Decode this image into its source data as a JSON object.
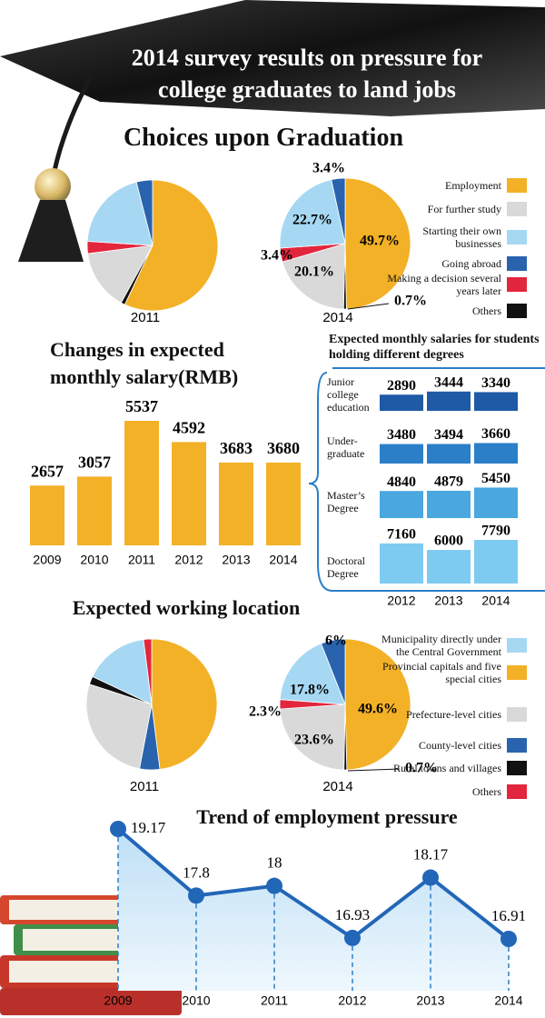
{
  "header": {
    "title": "2014 survey results on pressure for college graduates to land jobs"
  },
  "chart_data": [
    {
      "type": "pie",
      "title": "Choices upon Graduation",
      "categories": [
        "Employment",
        "For further study",
        "Starting their own businesses",
        "Going abroad",
        "Making a decision several years later",
        "Others"
      ],
      "colors": [
        "#f3b127",
        "#d9d9d9",
        "#a6d8f3",
        "#2a63ad",
        "#e2263d",
        "#111111"
      ],
      "series": [
        {
          "name": "2011",
          "values": [
            57,
            15,
            20,
            4,
            3,
            1
          ]
        },
        {
          "name": "2014",
          "values": [
            49.7,
            20.1,
            22.7,
            3.4,
            3.4,
            0.7
          ],
          "value_labels": [
            "49.7%",
            "20.1%",
            "22.7%",
            "3.4%",
            "3.4%",
            "0.7%"
          ]
        }
      ]
    },
    {
      "type": "bar",
      "title": "Changes in expected monthly salary(RMB)",
      "categories": [
        "2009",
        "2010",
        "2011",
        "2012",
        "2013",
        "2014"
      ],
      "values": [
        2657,
        3057,
        5537,
        4592,
        3683,
        3680
      ],
      "color": "#f3b127"
    },
    {
      "type": "bar",
      "title": "Expected monthly salaries for students holding different degrees",
      "categories": [
        "2012",
        "2013",
        "2014"
      ],
      "series": [
        {
          "name": "Junior college education",
          "color": "#1f5aa6",
          "values": [
            2890,
            3444,
            3340
          ]
        },
        {
          "name": "Under-graduate",
          "color": "#2a7fc8",
          "values": [
            3480,
            3494,
            3660
          ]
        },
        {
          "name": "Master’s Degree",
          "color": "#4aa7e0",
          "values": [
            4840,
            4879,
            5450
          ]
        },
        {
          "name": "Doctoral Degree",
          "color": "#7ecbf2",
          "values": [
            7160,
            6000,
            7790
          ]
        }
      ]
    },
    {
      "type": "pie",
      "title": "Expected working location",
      "categories": [
        "Municipality directly under the Central Government",
        "Provincial capitals and five special cities",
        "Prefecture-level cities",
        "County-level cities",
        "Rural towns and villages",
        "Others"
      ],
      "colors": [
        "#a6d8f3",
        "#f3b127",
        "#d9d9d9",
        "#2a63ad",
        "#111111",
        "#e2263d"
      ],
      "series": [
        {
          "name": "2011",
          "values": [
            16,
            48,
            27,
            5,
            2,
            2
          ]
        },
        {
          "name": "2014",
          "values": [
            17.8,
            49.6,
            23.6,
            6,
            0.7,
            2.3
          ],
          "value_labels": [
            "17.8%",
            "49.6%",
            "23.6%",
            "6%",
            "0.7%",
            "2.3%"
          ]
        }
      ]
    },
    {
      "type": "line",
      "title": "Trend of employment pressure",
      "categories": [
        "2009",
        "2010",
        "2011",
        "2012",
        "2013",
        "2014"
      ],
      "values": [
        19.17,
        17.8,
        18,
        16.93,
        18.17,
        16.91
      ],
      "color": "#2266b8"
    }
  ]
}
